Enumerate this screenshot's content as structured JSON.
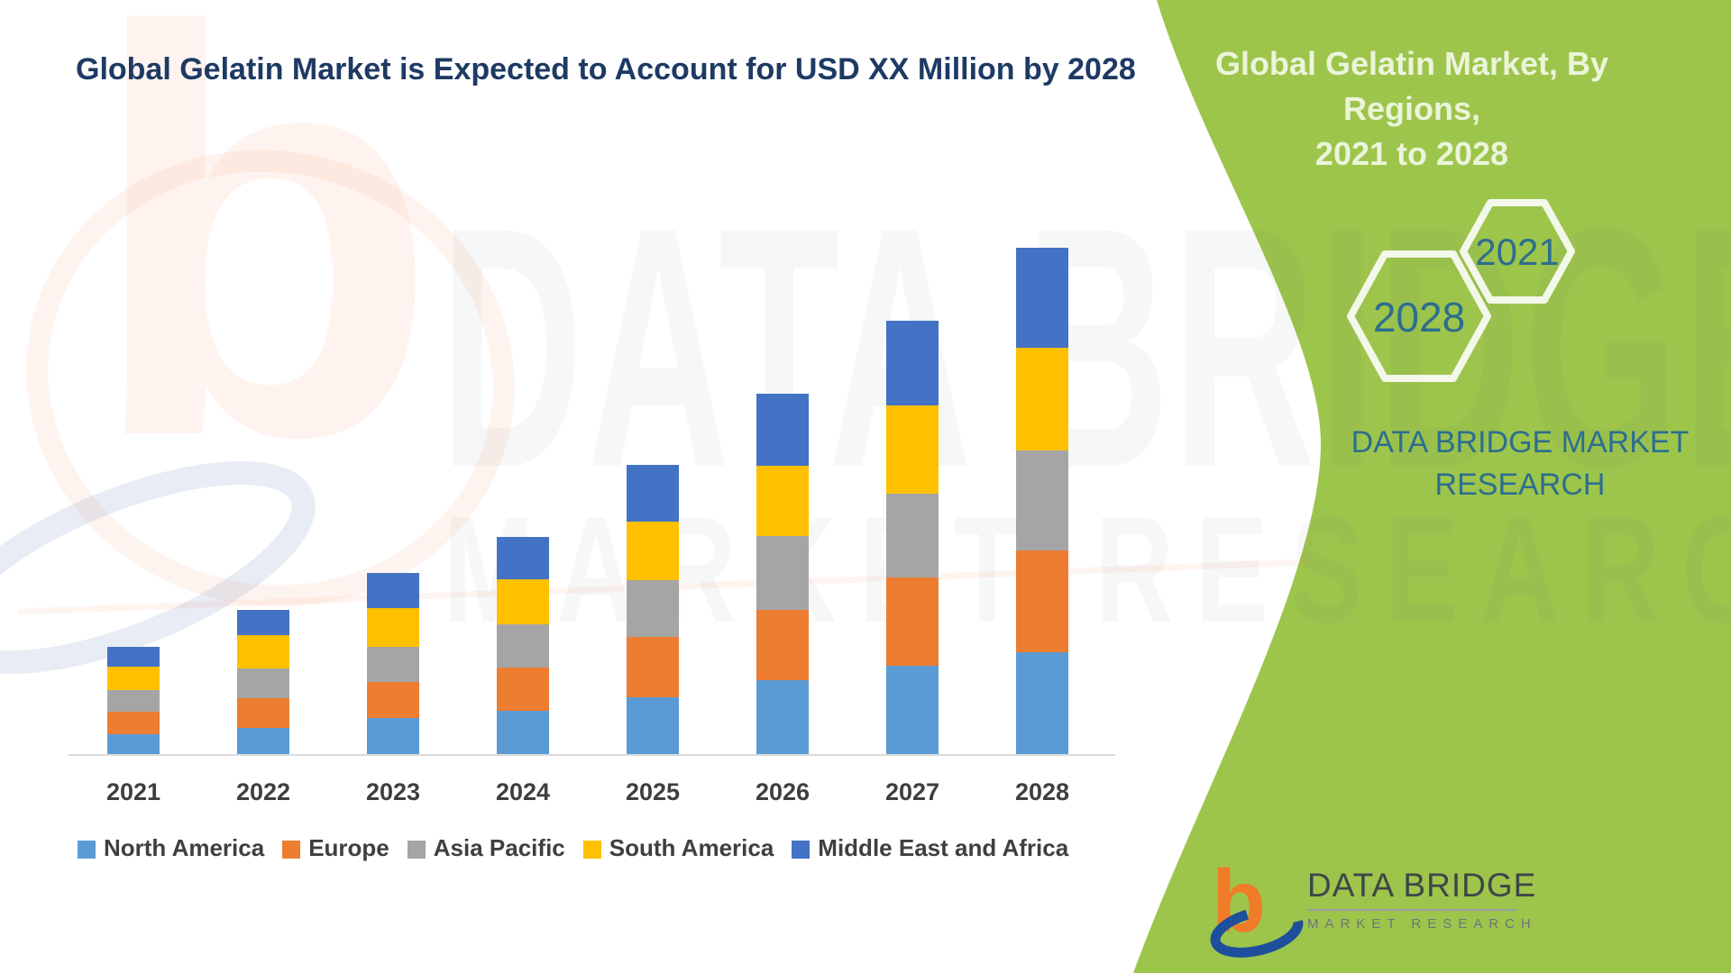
{
  "title": "Global Gelatin Market is Expected to Account for USD XX Million by 2028",
  "colors": {
    "title-navy": "#1E3A64",
    "accent-green": "#9DC54C",
    "panel-text": "#ECF4DA",
    "text-teal": "#2D6E8E",
    "axis-line": "#DADADA",
    "label-gray": "#3F3F3F",
    "logo-orange": "#F07B28",
    "logo-blue": "#1D4F9C"
  },
  "panel": {
    "heading_line1": "Global Gelatin Market, By Regions,",
    "heading_line2": "2021 to 2028",
    "hexagon_top": "2021",
    "hexagon_bottom": "2028",
    "brand_line1": "DATA BRIDGE MARKET",
    "brand_line2": "RESEARCH"
  },
  "logo": {
    "letter": "b",
    "name": "DATA BRIDGE",
    "subtitle": "MARKET RESEARCH"
  },
  "watermark": {
    "logo_letter": "b",
    "line1": "DATA BRIDGE",
    "line2": "MARKET RESEARCH"
  },
  "chart_data": {
    "type": "bar",
    "stacked": true,
    "title": "Global Gelatin Market is Expected to Account for USD XX Million by 2028",
    "xlabel": "",
    "ylabel": "",
    "value_axis_note": "No numeric axis shown; values are undisclosed (USD XX Million). Heights below are measured pixel heights (relative units).",
    "gridlines": false,
    "legend_position": "bottom",
    "categories": [
      "2021",
      "2022",
      "2023",
      "2024",
      "2025",
      "2026",
      "2027",
      "2028"
    ],
    "series": [
      {
        "name": "North America",
        "color": "#5B9BD5",
        "values": [
          23,
          30,
          41,
          49,
          64,
          83,
          99,
          114
        ]
      },
      {
        "name": "Europe",
        "color": "#ED7D31",
        "values": [
          25,
          33,
          40,
          48,
          67,
          78,
          98,
          113
        ]
      },
      {
        "name": "Asia Pacific",
        "color": "#A5A5A5",
        "values": [
          24,
          33,
          39,
          48,
          63,
          82,
          93,
          111
        ]
      },
      {
        "name": "South America",
        "color": "#FFC000",
        "values": [
          26,
          37,
          43,
          50,
          65,
          78,
          98,
          114
        ]
      },
      {
        "name": "Middle East and Africa",
        "color": "#4472C4",
        "values": [
          22,
          28,
          39,
          47,
          63,
          80,
          94,
          111
        ]
      }
    ],
    "stack_totals_relative": [
      120,
      161,
      202,
      242,
      322,
      401,
      482,
      563
    ]
  }
}
